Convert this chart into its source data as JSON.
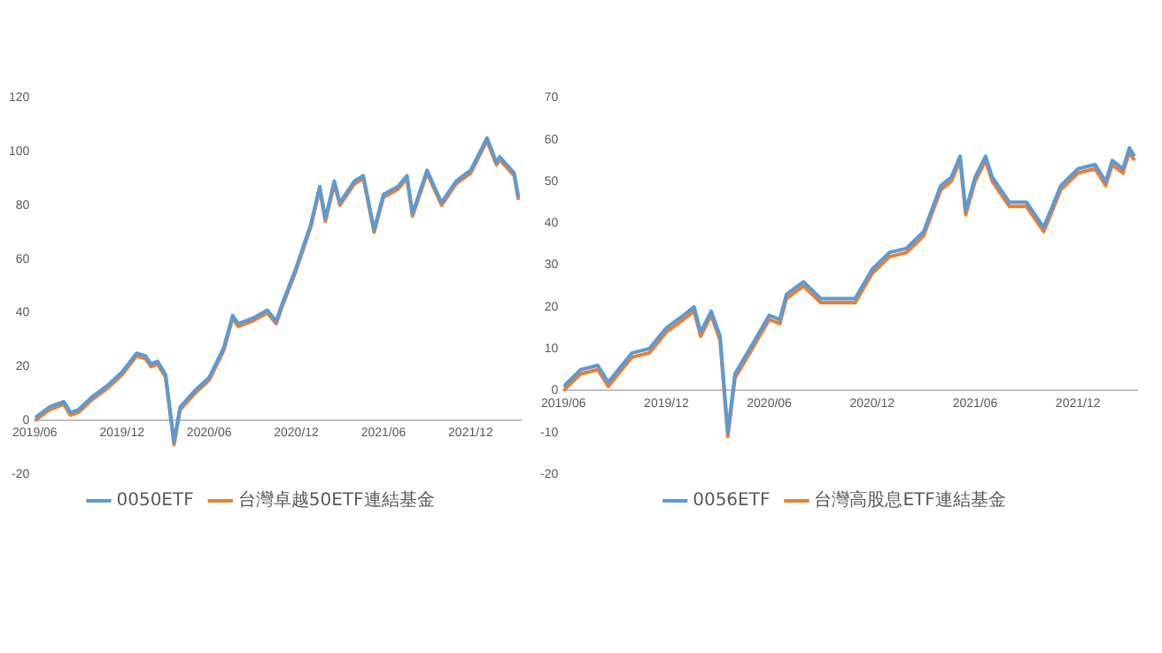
{
  "chart_data": [
    {
      "type": "line",
      "x": [
        "2019-06",
        "2019-07",
        "2019-08",
        "2019-08-15",
        "2019-09",
        "2019-10",
        "2019-11",
        "2019-12",
        "2020-01",
        "2020-01-20",
        "2020-02",
        "2020-02-15",
        "2020-03",
        "2020-03-19",
        "2020-04",
        "2020-05",
        "2020-06",
        "2020-07",
        "2020-07-20",
        "2020-08",
        "2020-09",
        "2020-10",
        "2020-10-20",
        "2020-11",
        "2020-12",
        "2021-01",
        "2021-01-20",
        "2021-02",
        "2021-02-20",
        "2021-03",
        "2021-04",
        "2021-04-20",
        "2021-05-12",
        "2021-06",
        "2021-07",
        "2021-07-20",
        "2021-08",
        "2021-09",
        "2021-10",
        "2021-11",
        "2021-12",
        "2022-01-05",
        "2022-01-25",
        "2022-02",
        "2022-03",
        "2022-03-10"
      ],
      "series": [
        {
          "name": "0050ETF",
          "color": "#5b9bd5",
          "values": [
            1,
            5,
            7,
            3,
            4,
            9,
            13,
            18,
            25,
            24,
            21,
            22,
            17,
            -8,
            5,
            11,
            16,
            27,
            39,
            36,
            38,
            41,
            37,
            43,
            57,
            73,
            87,
            75,
            89,
            81,
            89,
            91,
            71,
            84,
            87,
            91,
            77,
            93,
            81,
            89,
            93,
            105,
            96,
            98,
            92,
            83
          ]
        },
        {
          "name": "台灣卓越50ETF連結基金",
          "color": "#ed7d31",
          "values": [
            0,
            4,
            6,
            2,
            3,
            8,
            12,
            17,
            24,
            23,
            20,
            21,
            16,
            -9,
            4,
            10,
            15,
            26,
            38,
            35,
            37,
            40,
            36,
            42,
            56,
            72,
            86,
            74,
            88,
            80,
            88,
            90,
            70,
            83,
            86,
            90,
            76,
            92,
            80,
            88,
            92,
            104,
            95,
            97,
            91,
            82
          ]
        }
      ],
      "xlim": [
        "2019-06",
        "2022-03-15"
      ],
      "xticks": [
        {
          "value": "2019-06",
          "label": "2019/06"
        },
        {
          "value": "2019-12",
          "label": "2019/12"
        },
        {
          "value": "2020-06",
          "label": "2020/06"
        },
        {
          "value": "2020-12",
          "label": "2020/12"
        },
        {
          "value": "2021-06",
          "label": "2021/06"
        },
        {
          "value": "2021-12",
          "label": "2021/12"
        }
      ],
      "ylim": [
        -20,
        120
      ],
      "yticks": [
        -20,
        0,
        20,
        40,
        60,
        80,
        100,
        120
      ],
      "legend": "bottom",
      "grid": false
    },
    {
      "type": "line",
      "x": [
        "2019-06",
        "2019-07",
        "2019-08",
        "2019-08-20",
        "2019-09",
        "2019-10",
        "2019-11",
        "2019-12",
        "2020-01",
        "2020-01-20",
        "2020-02",
        "2020-02-20",
        "2020-03-05",
        "2020-03-19",
        "2020-04",
        "2020-05",
        "2020-06",
        "2020-06-20",
        "2020-07",
        "2020-08",
        "2020-09",
        "2020-10",
        "2020-11",
        "2020-12",
        "2021-01",
        "2021-02",
        "2021-03",
        "2021-04",
        "2021-04-20",
        "2021-05-05",
        "2021-05-15",
        "2021-06",
        "2021-06-20",
        "2021-07",
        "2021-08",
        "2021-09",
        "2021-10",
        "2021-11",
        "2021-12",
        "2022-01",
        "2022-01-20",
        "2022-02",
        "2022-02-20",
        "2022-03",
        "2022-03-10"
      ],
      "series": [
        {
          "name": "0056ETF",
          "color": "#5b9bd5",
          "values": [
            1,
            5,
            6,
            2,
            4,
            9,
            10,
            15,
            18,
            20,
            14,
            19,
            13,
            -10,
            4,
            11,
            18,
            17,
            23,
            26,
            22,
            22,
            22,
            29,
            33,
            34,
            38,
            49,
            51,
            56,
            43,
            51,
            56,
            51,
            45,
            45,
            39,
            49,
            53,
            54,
            50,
            55,
            53,
            58,
            56
          ]
        },
        {
          "name": "台灣高股息ETF連結基金",
          "color": "#ed7d31",
          "values": [
            0,
            4,
            5,
            1,
            3,
            8,
            9,
            14,
            17,
            19,
            13,
            18,
            12,
            -11,
            3,
            10,
            17,
            16,
            22,
            25,
            21,
            21,
            21,
            28,
            32,
            33,
            37,
            48,
            50,
            55,
            42,
            50,
            55,
            50,
            44,
            44,
            38,
            48,
            52,
            53,
            49,
            54,
            52,
            57,
            55
          ]
        }
      ],
      "xlim": [
        "2019-06",
        "2022-03-15"
      ],
      "xticks": [
        {
          "value": "2019-06",
          "label": "2019/06"
        },
        {
          "value": "2019-12",
          "label": "2019/12"
        },
        {
          "value": "2020-06",
          "label": "2020/06"
        },
        {
          "value": "2020-12",
          "label": "2020/12"
        },
        {
          "value": "2021-06",
          "label": "2021/06"
        },
        {
          "value": "2021-12",
          "label": "2021/12"
        }
      ],
      "ylim": [
        -20,
        70
      ],
      "yticks": [
        -20,
        -10,
        0,
        10,
        20,
        30,
        40,
        50,
        60,
        70
      ],
      "legend": "bottom",
      "grid": false
    }
  ]
}
